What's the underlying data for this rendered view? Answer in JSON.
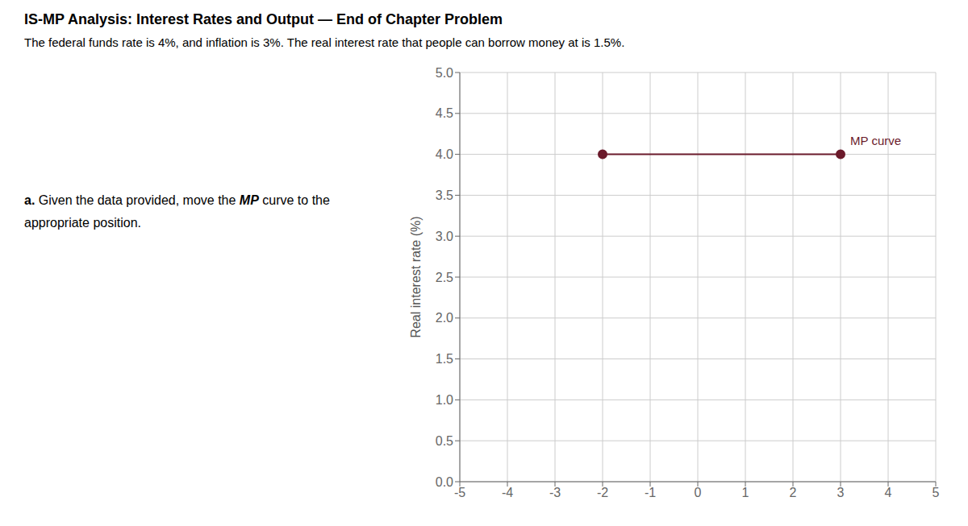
{
  "chart_data": {
    "type": "line",
    "title": "IS-MP Analysis: Interest Rates and Output — End of Chapter Problem",
    "subtitle": "The federal funds rate is 4%, and inflation is 3%. The real interest rate that people can borrow money at is 1.5%.",
    "annotations": [
      "a.",
      " Given the data provided, move the ",
      "MP",
      " curve to the",
      "appropriate position."
    ],
    "y_label": "Real interest rate (%)",
    "x": [
      -2,
      3
    ],
    "series": [
      {
        "name": "MP curve",
        "color": "#6b1a2b",
        "values": [
          4.0,
          4.0
        ],
        "marker": "circle",
        "line_style": "solid"
      }
    ],
    "xlim": [
      -5,
      5
    ],
    "ylim": [
      0.0,
      5.0
    ],
    "xticks": [
      -5,
      -4,
      -3,
      -2,
      -1,
      0,
      1,
      2,
      3,
      4,
      5
    ],
    "yticks": [
      {
        "value": 0,
        "label": "0.0"
      },
      0.5,
      {
        "value": 1,
        "label": "1.0"
      },
      1.5,
      {
        "value": 2,
        "label": "2.0"
      },
      2.5,
      {
        "value": 3,
        "label": "3.0"
      },
      3.5,
      {
        "value": 4,
        "label": "4.0"
      },
      4.5,
      {
        "value": 5,
        "label": "5.0"
      }
    ],
    "grid": true
  }
}
